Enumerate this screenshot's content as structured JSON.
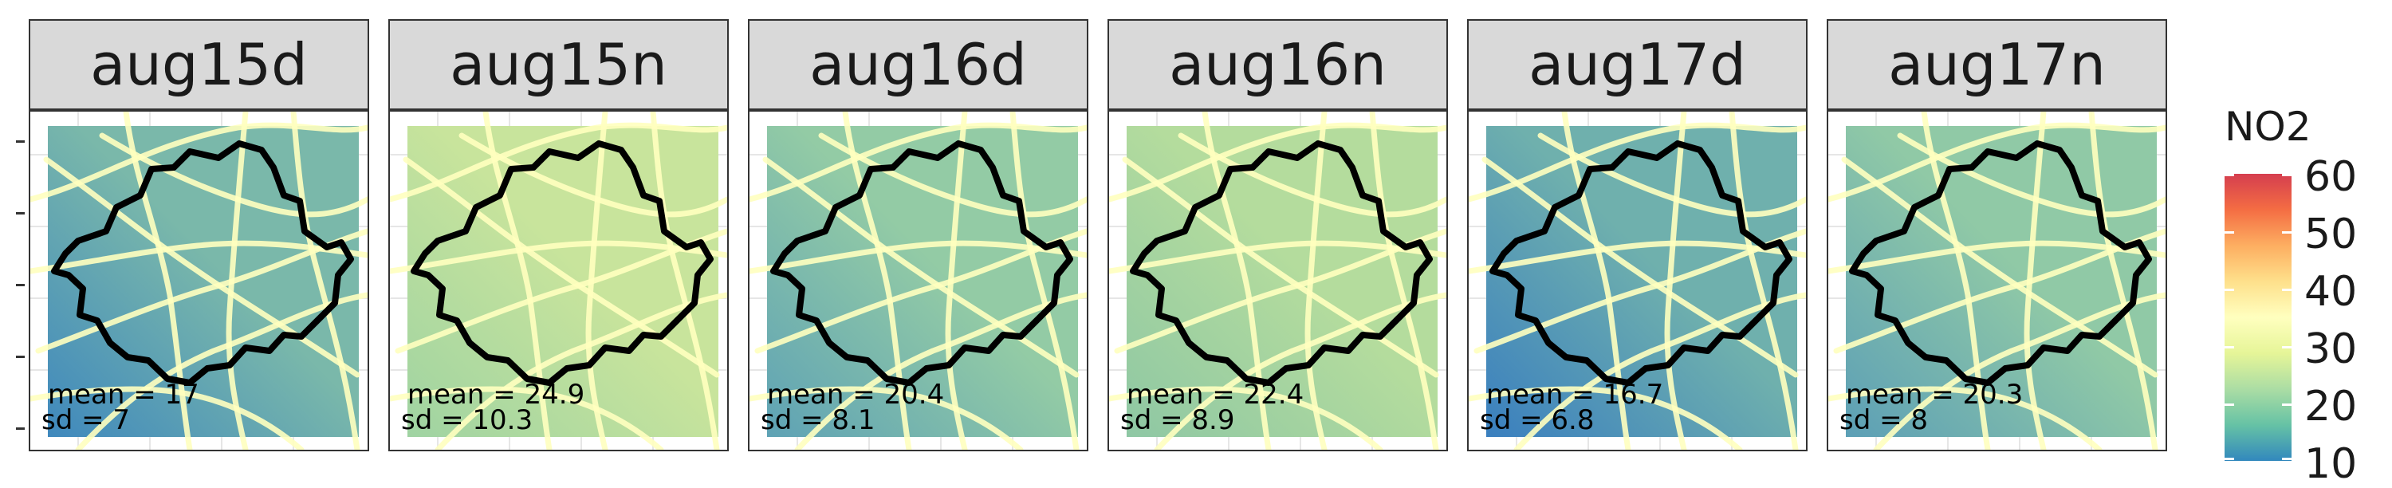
{
  "map": {
    "panels": [
      {
        "label": "aug15d",
        "mean_text": "mean = 17",
        "sd_text": "sd = 7",
        "mean": 17,
        "sd": 7,
        "base_color": "#7ab8aa",
        "dark_color": "#3f88bd"
      },
      {
        "label": "aug15n",
        "mean_text": "mean = 24.9",
        "sd_text": "sd = 10.3",
        "mean": 24.9,
        "sd": 10.3,
        "base_color": "#c8e49c",
        "dark_color": "#9fd3a2"
      },
      {
        "label": "aug16d",
        "mean_text": "mean = 20.4",
        "sd_text": "sd = 8.1",
        "mean": 20.4,
        "sd": 8.1,
        "base_color": "#93cba5",
        "dark_color": "#5ea2b5"
      },
      {
        "label": "aug16n",
        "mean_text": "mean = 22.4",
        "sd_text": "sd = 8.9",
        "mean": 22.4,
        "sd": 8.9,
        "base_color": "#b4dc9d",
        "dark_color": "#8ec7a4"
      },
      {
        "label": "aug17d",
        "mean_text": "mean = 16.7",
        "sd_text": "sd = 6.8",
        "mean": 16.7,
        "sd": 6.8,
        "base_color": "#6fb0ad",
        "dark_color": "#3a7fbf"
      },
      {
        "label": "aug17n",
        "mean_text": "mean = 20.3",
        "sd_text": "sd = 8",
        "mean": 20.3,
        "sd": 8,
        "base_color": "#90c9a6",
        "dark_color": "#5c9fb6"
      }
    ],
    "legend": {
      "title": "NO2",
      "ticks": [
        "60",
        "50",
        "40",
        "30",
        "20",
        "10"
      ],
      "colors": [
        "#d53e4f",
        "#f46d43",
        "#fdae61",
        "#fee08b",
        "#ffffbf",
        "#e6f598",
        "#abdda4",
        "#66c2a5",
        "#3288bd"
      ]
    },
    "road_color": "#ffffbf",
    "boundary_color": "#000000"
  }
}
